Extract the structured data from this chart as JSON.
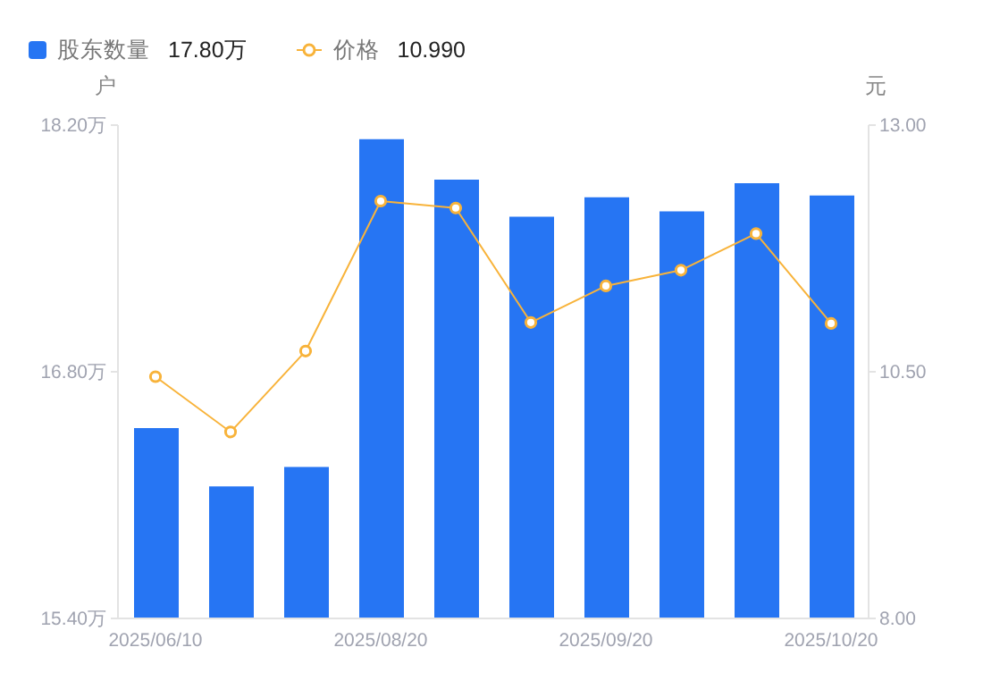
{
  "chart_data": {
    "type": "bar",
    "ylabel": "户",
    "y2label": "元",
    "categories": [
      "2025/06/10",
      null,
      null,
      "2025/08/20",
      null,
      null,
      "2025/09/20",
      null,
      null,
      "2025/10/20"
    ],
    "series": [
      {
        "name": "股东数量",
        "color": "#2675f3",
        "values": [
          16.48,
          16.15,
          16.26,
          18.12,
          17.89,
          17.68,
          17.79,
          17.71,
          17.87,
          17.8
        ]
      },
      {
        "name": "价格",
        "type": "line",
        "axis": "y2",
        "color": "#f8b33a",
        "marker": "circle",
        "values": [
          10.45,
          9.89,
          10.71,
          12.23,
          12.16,
          11.0,
          11.37,
          11.53,
          11.9,
          10.99
        ]
      }
    ],
    "ylim": [
      15.4,
      18.2
    ],
    "yticks": [
      {
        "value": 15.4,
        "label": "15.40万"
      },
      {
        "value": 16.8,
        "label": "16.80万"
      },
      {
        "value": 18.2,
        "label": "18.20万"
      }
    ],
    "y2lim": [
      8,
      13
    ],
    "y2ticks": [
      {
        "value": 8,
        "label": "8.00"
      },
      {
        "value": 10.5,
        "label": "10.50"
      },
      {
        "value": 13,
        "label": "13.00"
      }
    ],
    "annotations": [
      "17.80万",
      "10.990"
    ],
    "legend": "top left",
    "grid": false
  }
}
